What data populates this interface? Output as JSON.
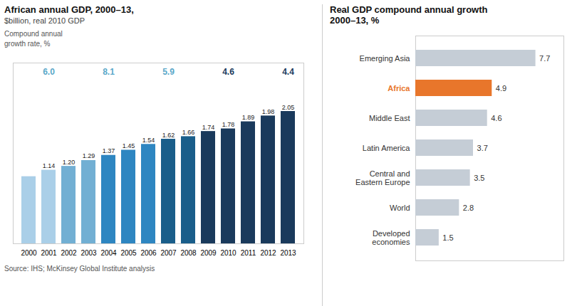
{
  "chart_data": [
    {
      "type": "bar",
      "title": "African annual GDP, 2000–13,",
      "subtitle": "$billion, real 2010 GDP",
      "annotation_title": "Compound annual\ngrowth rate, %",
      "annotations": [
        {
          "text": "6.0",
          "color": "#5ba8c9"
        },
        {
          "text": "8.1",
          "color": "#5ba8c9"
        },
        {
          "text": "5.9",
          "color": "#5ba8c9"
        },
        {
          "text": "4.6",
          "color": "#1a3a5c"
        },
        {
          "text": "4.4",
          "color": "#1a3a5c"
        }
      ],
      "source": "Source: IHS; McKinsey Global Institute analysis",
      "categories": [
        "2000",
        "2001",
        "2002",
        "2003",
        "2004",
        "2005",
        "2006",
        "2007",
        "2008",
        "2009",
        "2010",
        "2011",
        "2012",
        "2013"
      ],
      "values": [
        1.04,
        1.14,
        1.2,
        1.29,
        1.37,
        1.45,
        1.54,
        1.62,
        1.66,
        1.74,
        1.78,
        1.89,
        1.98,
        2.05
      ],
      "value_labels": [
        null,
        "1.14",
        "1.20",
        "1.29",
        "1.37",
        "1.45",
        "1.54",
        "1.62",
        "1.66",
        "1.74",
        "1.78",
        "1.89",
        "1.98",
        "2.05"
      ],
      "colors": [
        "#aacfe8",
        "#aacfe8",
        "#72afd3",
        "#72afd3",
        "#2e86c1",
        "#2e86c1",
        "#2e86c1",
        "#1a5e8a",
        "#1a5e8a",
        "#1a3a5c",
        "#1a3a5c",
        "#1a3a5c",
        "#1a3a5c",
        "#1a3a5c"
      ],
      "ylim": [
        0,
        2.8
      ],
      "data_labels": true,
      "tick_labels": "x"
    },
    {
      "type": "bar",
      "orientation": "horizontal",
      "title": "Real GDP compound annual growth",
      "subtitle": "2000–13, %",
      "categories": [
        "Emerging Asia",
        "Africa",
        "Middle East",
        "Latin America",
        "Central and\nEastern Europe",
        "World",
        "Developed\neconomies"
      ],
      "values": [
        7.7,
        4.9,
        4.6,
        3.7,
        3.5,
        2.8,
        1.5
      ],
      "colors": [
        "#c5cdd6",
        "#e8762b",
        "#c5cdd6",
        "#c5cdd6",
        "#c5cdd6",
        "#c5cdd6",
        "#c5cdd6"
      ],
      "xlim": [
        0,
        9.5
      ],
      "data_labels": true,
      "tick_labels": "y"
    }
  ]
}
